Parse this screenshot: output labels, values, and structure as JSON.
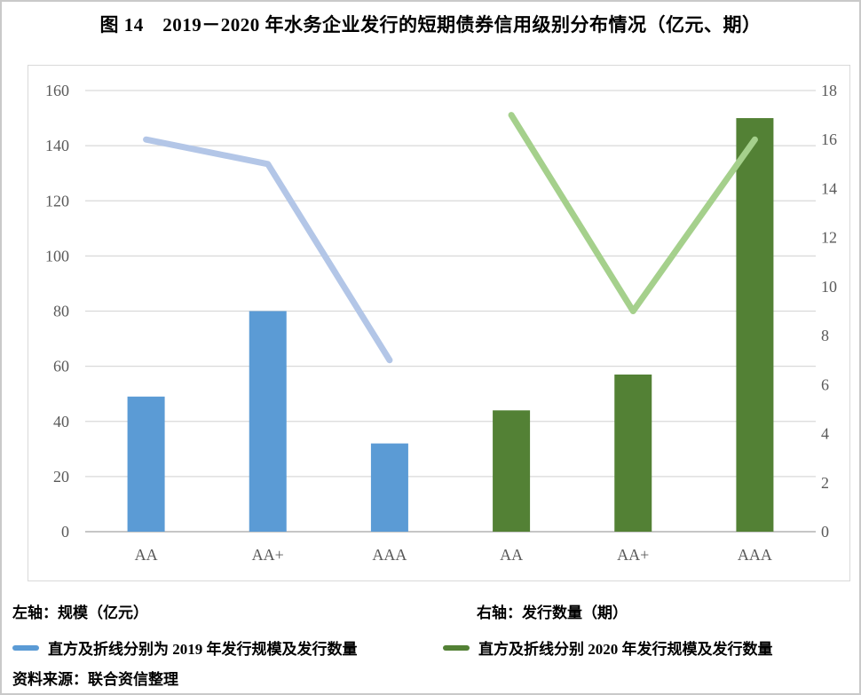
{
  "title": "图 14　2019－2020 年水务企业发行的短期债券信用级别分布情况（亿元、期）",
  "colors": {
    "bar_2019": "#5b9bd5",
    "line_2019": "#b3c6e7",
    "bar_2020": "#538135",
    "line_2020": "#a5d08c",
    "gridline": "#d9d9d9",
    "zero_axis": "#c6c6c6",
    "axis_text": "#595959"
  },
  "chart_data": {
    "type": "bar",
    "subtype": "bar-line-combo-dual-axis",
    "categories": [
      "AA",
      "AA+",
      "AAA",
      "AA",
      "AA+",
      "AAA"
    ],
    "series": [
      {
        "name": "2019 发行规模（亿元）",
        "kind": "bar",
        "axis": "left",
        "category_indices": [
          0,
          1,
          2
        ],
        "values": [
          49,
          80,
          32
        ],
        "color_key": "bar_2019"
      },
      {
        "name": "2019 发行数量（期）",
        "kind": "line",
        "axis": "right",
        "category_indices": [
          0,
          1,
          2
        ],
        "values": [
          16,
          15,
          7
        ],
        "color_key": "line_2019"
      },
      {
        "name": "2020 发行规模（亿元）",
        "kind": "bar",
        "axis": "left",
        "category_indices": [
          3,
          4,
          5
        ],
        "values": [
          44,
          57,
          150
        ],
        "color_key": "bar_2020"
      },
      {
        "name": "2020 发行数量（期）",
        "kind": "line",
        "axis": "right",
        "category_indices": [
          3,
          4,
          5
        ],
        "values": [
          17,
          9,
          16
        ],
        "color_key": "line_2020"
      }
    ],
    "left_axis": {
      "min": 0,
      "max": 160,
      "step": 20,
      "ticks": [
        0,
        20,
        40,
        60,
        80,
        100,
        120,
        140,
        160
      ]
    },
    "right_axis": {
      "min": 0,
      "max": 18,
      "step": 2,
      "ticks": [
        0,
        2,
        4,
        6,
        8,
        10,
        12,
        14,
        16,
        18
      ]
    },
    "grid": true,
    "legend_position": "below"
  },
  "footer": {
    "left_axis_label": "左轴：规模（亿元）",
    "right_axis_label": "右轴：发行数量（期）",
    "legend_2019": "直方及折线分别为 2019 年发行规模及发行数量",
    "legend_2020": "直方及折线分别 2020 年发行规模及发行数量",
    "source": "资料来源：联合资信整理"
  }
}
